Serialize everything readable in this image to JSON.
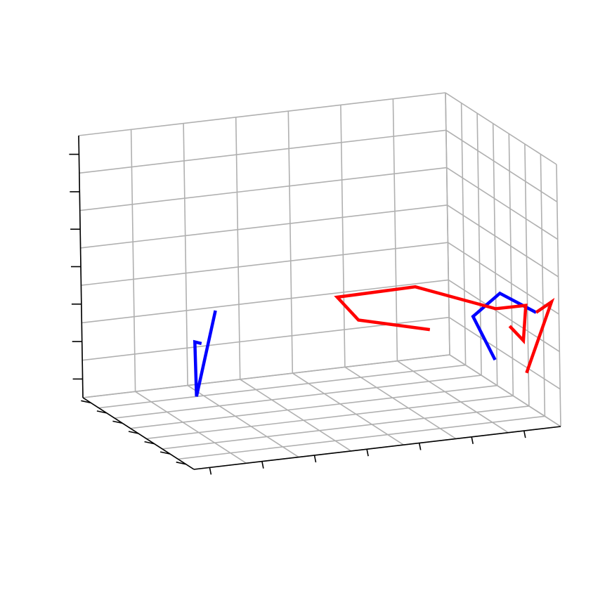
{
  "chart_data": {
    "type": "line",
    "projection": "3d",
    "title": "",
    "xlabel": "",
    "ylabel": "",
    "zlabel": "",
    "grid": true,
    "tick_labels_visible": false,
    "series": [
      {
        "color": "#0000ff",
        "segments": [
          [
            {
              "x": 0.55,
              "y": 0.2,
              "z": 0.45
            },
            {
              "x": 0.7,
              "y": 0.1,
              "z": 0.18
            },
            {
              "x": 0.86,
              "y": 0.05,
              "z": 0.44
            },
            {
              "x": 0.92,
              "y": 0.05,
              "z": 0.45
            }
          ],
          [
            {
              "x": 0.68,
              "y": 0.92,
              "z": 0.18
            },
            {
              "x": 0.82,
              "y": 0.82,
              "z": 0.4
            },
            {
              "x": 0.8,
              "y": 0.9,
              "z": 0.47
            },
            {
              "x": 0.86,
              "y": 0.98,
              "z": 0.4
            }
          ]
        ]
      },
      {
        "color": "#ff0000",
        "segments": [
          [
            {
              "x": 0.76,
              "y": 0.72,
              "z": 0.35
            },
            {
              "x": 0.58,
              "y": 0.58,
              "z": 0.36
            },
            {
              "x": 0.59,
              "y": 0.52,
              "z": 0.46
            },
            {
              "x": 0.7,
              "y": 0.7,
              "z": 0.5
            },
            {
              "x": 0.76,
              "y": 0.9,
              "z": 0.4
            },
            {
              "x": 0.7,
              "y": 1.0,
              "z": 0.38
            },
            {
              "x": 0.74,
              "y": 0.98,
              "z": 0.26
            },
            {
              "x": 0.55,
              "y": 1.0,
              "z": 0.26
            }
          ],
          [
            {
              "x": 0.86,
              "y": 0.98,
              "z": 0.4
            },
            {
              "x": 0.6,
              "y": 1.1,
              "z": 0.35
            },
            {
              "x": 0.63,
              "y": 1.02,
              "z": 0.1
            }
          ]
        ]
      }
    ]
  }
}
